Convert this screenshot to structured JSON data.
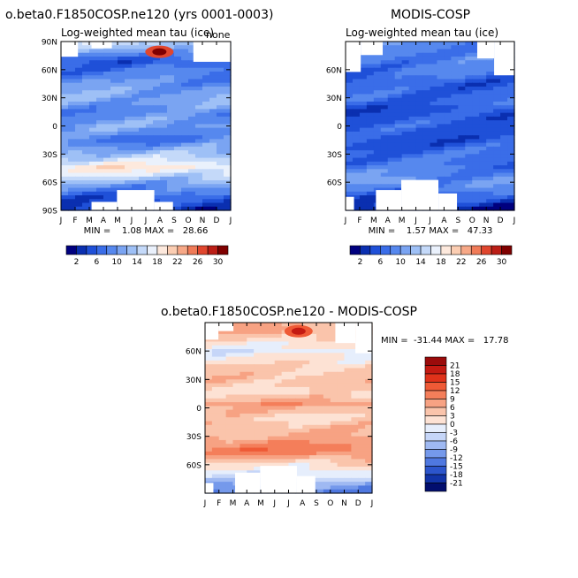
{
  "chart_data": [
    {
      "type": "heatmap",
      "panel": "top-left",
      "title": "o.beta0.F1850COSP.ne120 (yrs 0001-0003)",
      "subtitle": "Log-weighted mean tau (ice)",
      "corner_label": "none",
      "x_ticks": [
        "J",
        "F",
        "M",
        "A",
        "M",
        "J",
        "J",
        "A",
        "S",
        "O",
        "N",
        "D",
        "J"
      ],
      "y_ticks": [
        "90N",
        "60N",
        "30N",
        "0",
        "30S",
        "60S",
        "90S"
      ],
      "ylim": [
        -90,
        90
      ],
      "stats_text": "MIN =    1.08 MAX =   28.66",
      "min": 1.08,
      "max": 28.66,
      "colorbar": {
        "levels": [
          2,
          4,
          6,
          8,
          10,
          12,
          14,
          16,
          18,
          20,
          22,
          24,
          26,
          28,
          30
        ],
        "labels": [
          "2",
          "6",
          "10",
          "14",
          "18",
          "22",
          "26",
          "30"
        ],
        "colors": [
          "#00007f",
          "#0a2fb0",
          "#1f50d8",
          "#3a6de8",
          "#5688ee",
          "#7aa4f2",
          "#9ec0f6",
          "#c4d9f9",
          "#eaf1fc",
          "#fde9dd",
          "#fbcdb2",
          "#f7a887",
          "#f07b58",
          "#e0462e",
          "#bb1e16",
          "#7f0000"
        ]
      },
      "zonal_pattern": [
        {
          "lat": 85,
          "value": 14
        },
        {
          "lat": 70,
          "value": 6
        },
        {
          "lat": 50,
          "value": 9
        },
        {
          "lat": 30,
          "value": 12
        },
        {
          "lat": 15,
          "value": 9
        },
        {
          "lat": 0,
          "value": 11
        },
        {
          "lat": -15,
          "value": 8
        },
        {
          "lat": -30,
          "value": 13
        },
        {
          "lat": -45,
          "value": 19
        },
        {
          "lat": -60,
          "value": 12
        },
        {
          "lat": -75,
          "value": 6
        },
        {
          "lat": -88,
          "value": 4
        }
      ]
    },
    {
      "type": "heatmap",
      "panel": "top-right",
      "title": "MODIS-COSP",
      "subtitle": "Log-weighted mean tau (ice)",
      "x_ticks": [
        "J",
        "F",
        "M",
        "A",
        "M",
        "J",
        "J",
        "A",
        "S",
        "O",
        "N",
        "D",
        "J"
      ],
      "y_ticks": [
        "60N",
        "30N",
        "0",
        "30S",
        "60S"
      ],
      "ylim": [
        -90,
        90
      ],
      "stats_text": "MIN =    1.57 MAX =   47.33",
      "min": 1.57,
      "max": 47.33,
      "colorbar": {
        "levels": [
          2,
          4,
          6,
          8,
          10,
          12,
          14,
          16,
          18,
          20,
          22,
          24,
          26,
          28,
          30
        ],
        "labels": [
          "2",
          "6",
          "10",
          "14",
          "18",
          "22",
          "26",
          "30"
        ],
        "colors": [
          "#00007f",
          "#0a2fb0",
          "#1f50d8",
          "#3a6de8",
          "#5688ee",
          "#7aa4f2",
          "#9ec0f6",
          "#c4d9f9",
          "#eaf1fc",
          "#fde9dd",
          "#fbcdb2",
          "#f7a887",
          "#f07b58",
          "#e0462e",
          "#bb1e16",
          "#7f0000"
        ]
      },
      "zonal_pattern": [
        {
          "lat": 80,
          "value": 9
        },
        {
          "lat": 60,
          "value": 8
        },
        {
          "lat": 45,
          "value": 6
        },
        {
          "lat": 30,
          "value": 7
        },
        {
          "lat": 15,
          "value": 5
        },
        {
          "lat": 0,
          "value": 6
        },
        {
          "lat": -15,
          "value": 5
        },
        {
          "lat": -30,
          "value": 7
        },
        {
          "lat": -45,
          "value": 8
        },
        {
          "lat": -60,
          "value": 10
        },
        {
          "lat": -75,
          "value": 6
        },
        {
          "lat": -88,
          "value": 3
        }
      ]
    },
    {
      "type": "heatmap",
      "panel": "bottom-difference",
      "title": "o.beta0.F1850COSP.ne120 - MODIS-COSP",
      "x_ticks": [
        "J",
        "F",
        "M",
        "A",
        "M",
        "J",
        "J",
        "A",
        "S",
        "O",
        "N",
        "D",
        "J"
      ],
      "y_ticks": [
        "60N",
        "30N",
        "0",
        "30S",
        "60S"
      ],
      "ylim": [
        -90,
        90
      ],
      "stats_text": "MIN =  -31.44 MAX =   17.78",
      "min": -31.44,
      "max": 17.78,
      "colorbar": {
        "labels": [
          "21",
          "18",
          "15",
          "12",
          "9",
          "6",
          "3",
          "0",
          "-3",
          "-6",
          "-9",
          "-12",
          "-15",
          "-18",
          "-21"
        ],
        "colors": [
          "#9b0b0b",
          "#c41a12",
          "#e0321a",
          "#ef5a36",
          "#f47e5a",
          "#f7a283",
          "#fac4ab",
          "#fde2d4",
          "#e6eefc",
          "#c6d6f8",
          "#9fb9f2",
          "#7599eb",
          "#4f78e0",
          "#2c55cc",
          "#1234a8",
          "#020e6e"
        ]
      },
      "zonal_pattern": [
        {
          "lat": 80,
          "value": 6
        },
        {
          "lat": 60,
          "value": -2
        },
        {
          "lat": 45,
          "value": 3
        },
        {
          "lat": 30,
          "value": 5
        },
        {
          "lat": 15,
          "value": 2
        },
        {
          "lat": 5,
          "value": 8
        },
        {
          "lat": -10,
          "value": 3
        },
        {
          "lat": -30,
          "value": 6
        },
        {
          "lat": -45,
          "value": 11
        },
        {
          "lat": -60,
          "value": 2
        },
        {
          "lat": -75,
          "value": -5
        },
        {
          "lat": -88,
          "value": -12
        }
      ]
    }
  ]
}
